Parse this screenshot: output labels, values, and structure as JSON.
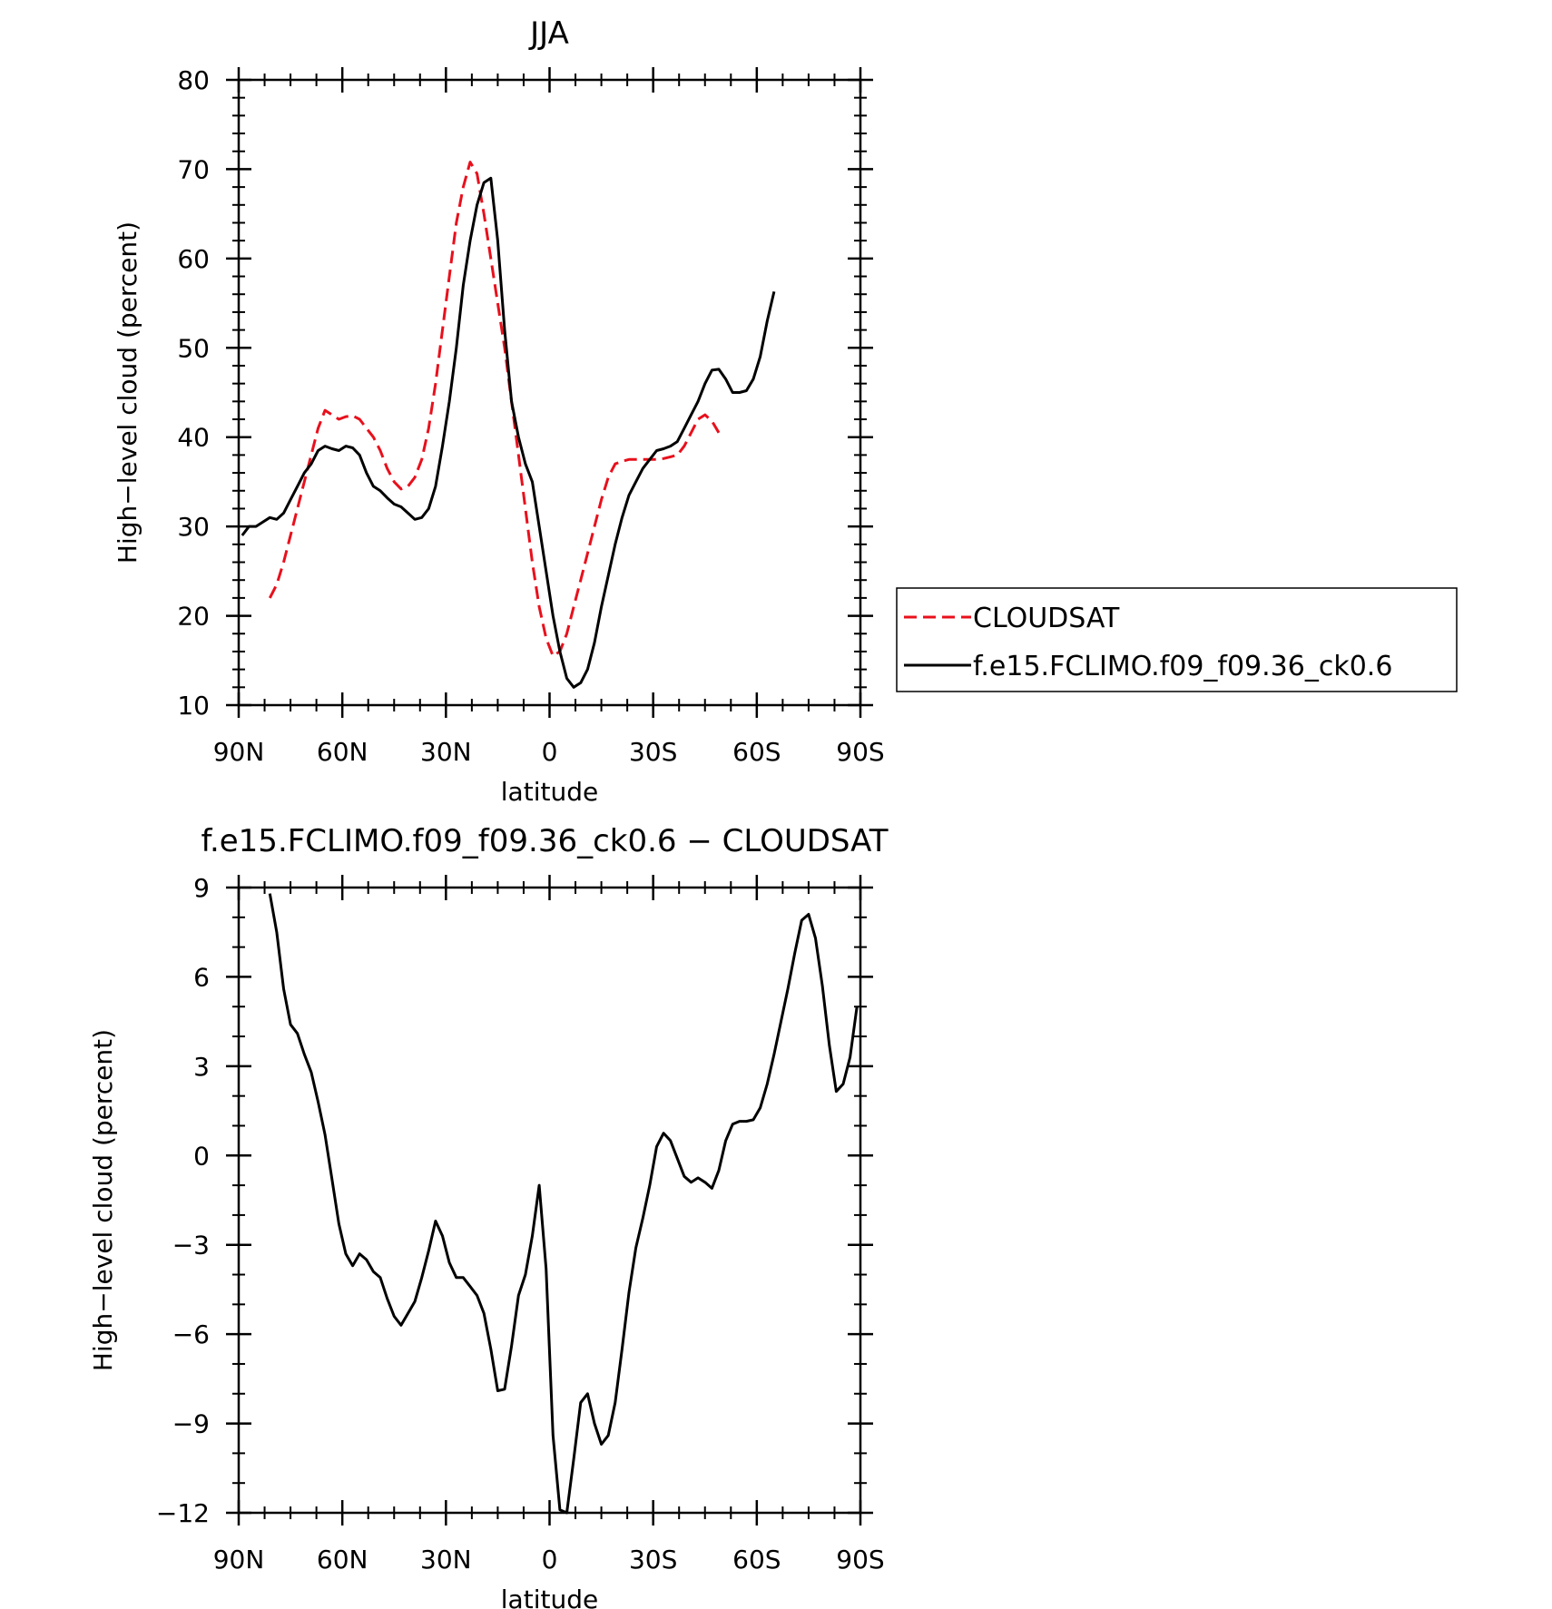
{
  "chart_data": [
    {
      "type": "line",
      "title": "JJA",
      "xlabel": "latitude",
      "ylabel": "High−level cloud (percent)",
      "xlim": [
        -90,
        90
      ],
      "ylim": [
        10,
        80
      ],
      "x_ticks": [
        {
          "value": -90,
          "label": "90N"
        },
        {
          "value": -60,
          "label": "60N"
        },
        {
          "value": -30,
          "label": "30N"
        },
        {
          "value": 0,
          "label": "0"
        },
        {
          "value": 30,
          "label": "30S"
        },
        {
          "value": 60,
          "label": "60S"
        },
        {
          "value": 90,
          "label": "90S"
        }
      ],
      "y_ticks": [
        10,
        20,
        30,
        40,
        50,
        60,
        70,
        80
      ],
      "legend_position": "right",
      "series": [
        {
          "name": "CLOUDSAT",
          "color": "#e8101c",
          "dash": "dashed",
          "points": [
            [
              -81,
              22
            ],
            [
              -79,
              23.5
            ],
            [
              -77,
              26
            ],
            [
              -75,
              29
            ],
            [
              -73,
              32
            ],
            [
              -71,
              35
            ],
            [
              -69,
              38
            ],
            [
              -67,
              41
            ],
            [
              -65,
              43
            ],
            [
              -63,
              42.5
            ],
            [
              -61,
              42
            ],
            [
              -59,
              42.3
            ],
            [
              -57,
              42.4
            ],
            [
              -55,
              42
            ],
            [
              -53,
              41
            ],
            [
              -51,
              40
            ],
            [
              -49,
              38.5
            ],
            [
              -47,
              36.5
            ],
            [
              -45,
              35
            ],
            [
              -43,
              34.2
            ],
            [
              -41,
              34.5
            ],
            [
              -39,
              35.5
            ],
            [
              -37,
              37.5
            ],
            [
              -35,
              41
            ],
            [
              -33,
              46
            ],
            [
              -31,
              52
            ],
            [
              -29,
              58
            ],
            [
              -27,
              64
            ],
            [
              -25,
              68
            ],
            [
              -23,
              70.8
            ],
            [
              -21,
              69.5
            ],
            [
              -19,
              65
            ],
            [
              -17,
              60
            ],
            [
              -15,
              55
            ],
            [
              -13,
              50
            ],
            [
              -11,
              44
            ],
            [
              -9,
              38
            ],
            [
              -7,
              32
            ],
            [
              -5,
              26
            ],
            [
              -3,
              21
            ],
            [
              -1,
              17.5
            ],
            [
              1,
              15.5
            ],
            [
              3,
              16
            ],
            [
              5,
              18
            ],
            [
              7,
              21
            ],
            [
              9,
              24
            ],
            [
              11,
              27
            ],
            [
              13,
              30
            ],
            [
              15,
              33
            ],
            [
              17,
              35.5
            ],
            [
              19,
              37
            ],
            [
              21,
              37.3
            ],
            [
              23,
              37.5
            ],
            [
              25,
              37.5
            ],
            [
              27,
              37.5
            ],
            [
              29,
              37.5
            ],
            [
              31,
              37.5
            ],
            [
              33,
              37.6
            ],
            [
              35,
              37.8
            ],
            [
              37,
              38
            ],
            [
              39,
              39
            ],
            [
              41,
              40.5
            ],
            [
              43,
              42
            ],
            [
              45,
              42.5
            ],
            [
              47,
              41.8
            ],
            [
              49,
              40.5
            ]
          ]
        },
        {
          "name": "f.e15.FCLIMO.f09_f09.36_ck0.6",
          "color": "#000000",
          "dash": "solid",
          "points": [
            [
              -89,
              29
            ],
            [
              -87,
              30
            ],
            [
              -85,
              30
            ],
            [
              -83,
              30.5
            ],
            [
              -81,
              31
            ],
            [
              -79,
              30.8
            ],
            [
              -77,
              31.5
            ],
            [
              -75,
              33
            ],
            [
              -73,
              34.5
            ],
            [
              -71,
              36
            ],
            [
              -69,
              37
            ],
            [
              -67,
              38.5
            ],
            [
              -65,
              39
            ],
            [
              -63,
              38.7
            ],
            [
              -61,
              38.5
            ],
            [
              -59,
              39
            ],
            [
              -57,
              38.8
            ],
            [
              -55,
              38
            ],
            [
              -53,
              36
            ],
            [
              -51,
              34.5
            ],
            [
              -49,
              34
            ],
            [
              -47,
              33.2
            ],
            [
              -45,
              32.5
            ],
            [
              -43,
              32.2
            ],
            [
              -41,
              31.5
            ],
            [
              -39,
              30.8
            ],
            [
              -37,
              31
            ],
            [
              -35,
              32
            ],
            [
              -33,
              34.5
            ],
            [
              -31,
              39
            ],
            [
              -29,
              44
            ],
            [
              -27,
              50
            ],
            [
              -25,
              57
            ],
            [
              -23,
              62
            ],
            [
              -21,
              66
            ],
            [
              -19,
              68.5
            ],
            [
              -17,
              69
            ],
            [
              -15,
              62
            ],
            [
              -13,
              52
            ],
            [
              -11,
              44
            ],
            [
              -9,
              40
            ],
            [
              -7,
              37
            ],
            [
              -5,
              35
            ],
            [
              -3,
              30
            ],
            [
              -1,
              25
            ],
            [
              1,
              20
            ],
            [
              3,
              16
            ],
            [
              5,
              13
            ],
            [
              7,
              12
            ],
            [
              9,
              12.5
            ],
            [
              11,
              14
            ],
            [
              13,
              17
            ],
            [
              15,
              21
            ],
            [
              17,
              24.5
            ],
            [
              19,
              28
            ],
            [
              21,
              31
            ],
            [
              23,
              33.5
            ],
            [
              25,
              35
            ],
            [
              27,
              36.5
            ],
            [
              29,
              37.5
            ],
            [
              31,
              38.5
            ],
            [
              33,
              38.7
            ],
            [
              35,
              39
            ],
            [
              37,
              39.5
            ],
            [
              39,
              41
            ],
            [
              41,
              42.5
            ],
            [
              43,
              44
            ],
            [
              45,
              46
            ],
            [
              47,
              47.5
            ],
            [
              49,
              47.6
            ],
            [
              51,
              46.5
            ],
            [
              53,
              45
            ],
            [
              55,
              45
            ],
            [
              57,
              45.2
            ],
            [
              59,
              46.5
            ],
            [
              61,
              49
            ],
            [
              63,
              53
            ],
            [
              65,
              56.3
            ]
          ]
        }
      ]
    },
    {
      "type": "line",
      "title": "f.e15.FCLIMO.f09_f09.36_ck0.6 − CLOUDSAT",
      "xlabel": "latitude",
      "ylabel": "High−level cloud (percent)",
      "xlim": [
        -90,
        90
      ],
      "ylim": [
        -12,
        9
      ],
      "x_ticks": [
        {
          "value": -90,
          "label": "90N"
        },
        {
          "value": -60,
          "label": "60N"
        },
        {
          "value": -30,
          "label": "30N"
        },
        {
          "value": 0,
          "label": "0"
        },
        {
          "value": 30,
          "label": "30S"
        },
        {
          "value": 60,
          "label": "60S"
        },
        {
          "value": 90,
          "label": "90S"
        }
      ],
      "y_ticks": [
        {
          "value": -12,
          "label": "−12"
        },
        {
          "value": -9,
          "label": "−9"
        },
        {
          "value": -6,
          "label": "−6"
        },
        {
          "value": -3,
          "label": "−3"
        },
        {
          "value": 0,
          "label": "0"
        },
        {
          "value": 3,
          "label": "3"
        },
        {
          "value": 6,
          "label": "6"
        },
        {
          "value": 9,
          "label": "9"
        }
      ],
      "series": [
        {
          "color": "#000000",
          "dash": "solid",
          "points": [
            [
              -81,
              8.8
            ],
            [
              -79,
              7.5
            ],
            [
              -77,
              5.6
            ],
            [
              -75,
              4.4
            ],
            [
              -73,
              4.1
            ],
            [
              -71,
              3.4
            ],
            [
              -69,
              2.8
            ],
            [
              -67,
              1.8
            ],
            [
              -65,
              0.7
            ],
            [
              -63,
              -0.8
            ],
            [
              -61,
              -2.3
            ],
            [
              -59,
              -3.3
            ],
            [
              -57,
              -3.7
            ],
            [
              -55,
              -3.3
            ],
            [
              -53,
              -3.5
            ],
            [
              -51,
              -3.9
            ],
            [
              -49,
              -4.1
            ],
            [
              -47,
              -4.8
            ],
            [
              -45,
              -5.4
            ],
            [
              -43,
              -5.7
            ],
            [
              -41,
              -5.3
            ],
            [
              -39,
              -4.9
            ],
            [
              -37,
              -4.1
            ],
            [
              -35,
              -3.2
            ],
            [
              -33,
              -2.2
            ],
            [
              -31,
              -2.7
            ],
            [
              -29,
              -3.6
            ],
            [
              -27,
              -4.1
            ],
            [
              -25,
              -4.1
            ],
            [
              -23,
              -4.4
            ],
            [
              -21,
              -4.7
            ],
            [
              -19,
              -5.3
            ],
            [
              -17,
              -6.5
            ],
            [
              -15,
              -7.9
            ],
            [
              -13,
              -7.85
            ],
            [
              -11,
              -6.4
            ],
            [
              -9,
              -4.7
            ],
            [
              -7,
              -4
            ],
            [
              -5,
              -2.7
            ],
            [
              -3,
              -1
            ],
            [
              -1,
              -3.8
            ],
            [
              1,
              -9.4
            ],
            [
              3,
              -11.9
            ],
            [
              5,
              -12
            ],
            [
              7,
              -10.2
            ],
            [
              9,
              -8.3
            ],
            [
              11,
              -8
            ],
            [
              13,
              -9
            ],
            [
              15,
              -9.7
            ],
            [
              17,
              -9.4
            ],
            [
              19,
              -8.3
            ],
            [
              21,
              -6.5
            ],
            [
              23,
              -4.6
            ],
            [
              25,
              -3.1
            ],
            [
              27,
              -2.1
            ],
            [
              29,
              -1
            ],
            [
              31,
              0.3
            ],
            [
              33,
              0.75
            ],
            [
              35,
              0.5
            ],
            [
              37,
              -0.1
            ],
            [
              39,
              -0.7
            ],
            [
              41,
              -0.9
            ],
            [
              43,
              -0.75
            ],
            [
              45,
              -0.9
            ],
            [
              47,
              -1.1
            ],
            [
              49,
              -0.5
            ],
            [
              51,
              0.5
            ],
            [
              53,
              1.05
            ],
            [
              55,
              1.15
            ],
            [
              57,
              1.15
            ],
            [
              59,
              1.2
            ],
            [
              61,
              1.6
            ],
            [
              63,
              2.4
            ],
            [
              65,
              3.4
            ],
            [
              67,
              4.5
            ],
            [
              69,
              5.6
            ],
            [
              71,
              6.8
            ],
            [
              73,
              7.9
            ],
            [
              75,
              8.1
            ],
            [
              77,
              7.3
            ],
            [
              79,
              5.7
            ],
            [
              81,
              3.7
            ],
            [
              83,
              2.15
            ],
            [
              85,
              2.4
            ],
            [
              87,
              3.3
            ],
            [
              89,
              5
            ]
          ]
        }
      ]
    }
  ]
}
